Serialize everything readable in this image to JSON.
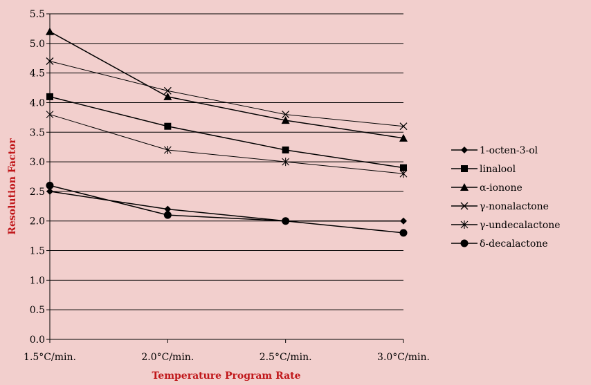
{
  "chart_data": {
    "type": "line",
    "title": "",
    "xlabel": "Temperature Program Rate",
    "ylabel": "Resolution Factor",
    "categories": [
      "1.5°C/min.",
      "2.0°C/min.",
      "2.5°C/min.",
      "3.0°C/min."
    ],
    "ylim": [
      0,
      5.5
    ],
    "yticks": [
      "0.0",
      "0.5",
      "1.0",
      "1.5",
      "2.0",
      "2.5",
      "3.0",
      "3.5",
      "4.0",
      "4.5",
      "5.0",
      "5.5"
    ],
    "grid": "horizontal",
    "legend": "right",
    "series": [
      {
        "name": "1-octen-3-ol",
        "marker": "diamond",
        "values": [
          2.5,
          2.2,
          2.0,
          2.0
        ]
      },
      {
        "name": "linalool",
        "marker": "square",
        "values": [
          4.1,
          3.6,
          3.2,
          2.9
        ]
      },
      {
        "name": "α-ionone",
        "marker": "triangle",
        "values": [
          5.2,
          4.1,
          3.7,
          3.4
        ]
      },
      {
        "name": "γ-nonalactone",
        "marker": "x",
        "values": [
          4.7,
          4.2,
          3.8,
          3.6
        ]
      },
      {
        "name": "γ-undecalactone",
        "marker": "asterisk",
        "values": [
          3.8,
          3.2,
          3.0,
          2.8
        ]
      },
      {
        "name": "δ-decalactone",
        "marker": "circle",
        "values": [
          2.6,
          2.1,
          2.0,
          1.8
        ]
      }
    ]
  }
}
